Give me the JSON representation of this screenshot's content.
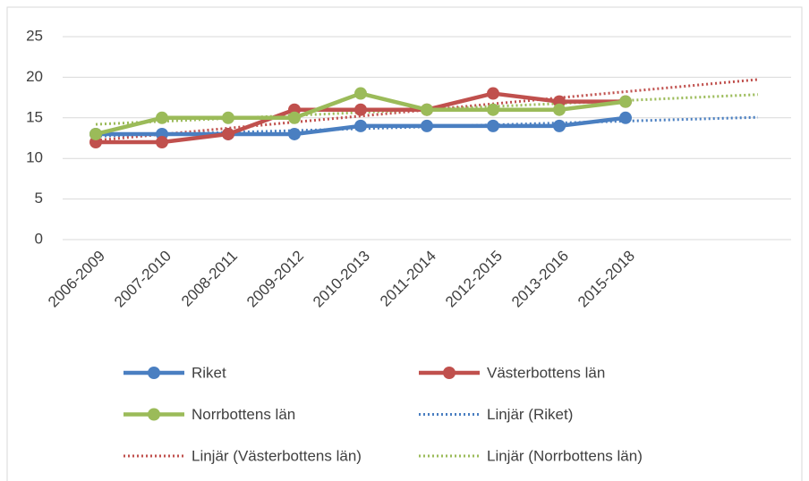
{
  "chart_data": {
    "type": "line",
    "categories": [
      "2006-2009",
      "2007-2010",
      "2008-2011",
      "2009-2012",
      "2010-2013",
      "2011-2014",
      "2012-2015",
      "2013-2016",
      "2015-2018"
    ],
    "series": [
      {
        "name": "Riket",
        "color": "#4a7fc1",
        "values": [
          13,
          13,
          13,
          13,
          14,
          14,
          14,
          14,
          15
        ]
      },
      {
        "name": "Västerbottens län",
        "color": "#c0504d",
        "values": [
          12,
          12,
          13,
          16,
          16,
          16,
          18,
          17,
          17
        ]
      },
      {
        "name": "Norrbottens län",
        "color": "#9bbb59",
        "values": [
          13,
          15,
          15,
          15,
          18,
          16,
          16,
          16,
          17
        ]
      }
    ],
    "trendlines": [
      {
        "name": "Linjär (Riket)",
        "series": 0,
        "forward": 2
      },
      {
        "name": "Linjär (Västerbottens län)",
        "series": 1,
        "forward": 2
      },
      {
        "name": "Linjär (Norrbottens län)",
        "series": 2,
        "forward": 2
      }
    ],
    "ylim": [
      0,
      25
    ],
    "yticks": [
      0,
      5,
      10,
      15,
      20,
      25
    ],
    "grid": true,
    "legend": "bottom"
  }
}
